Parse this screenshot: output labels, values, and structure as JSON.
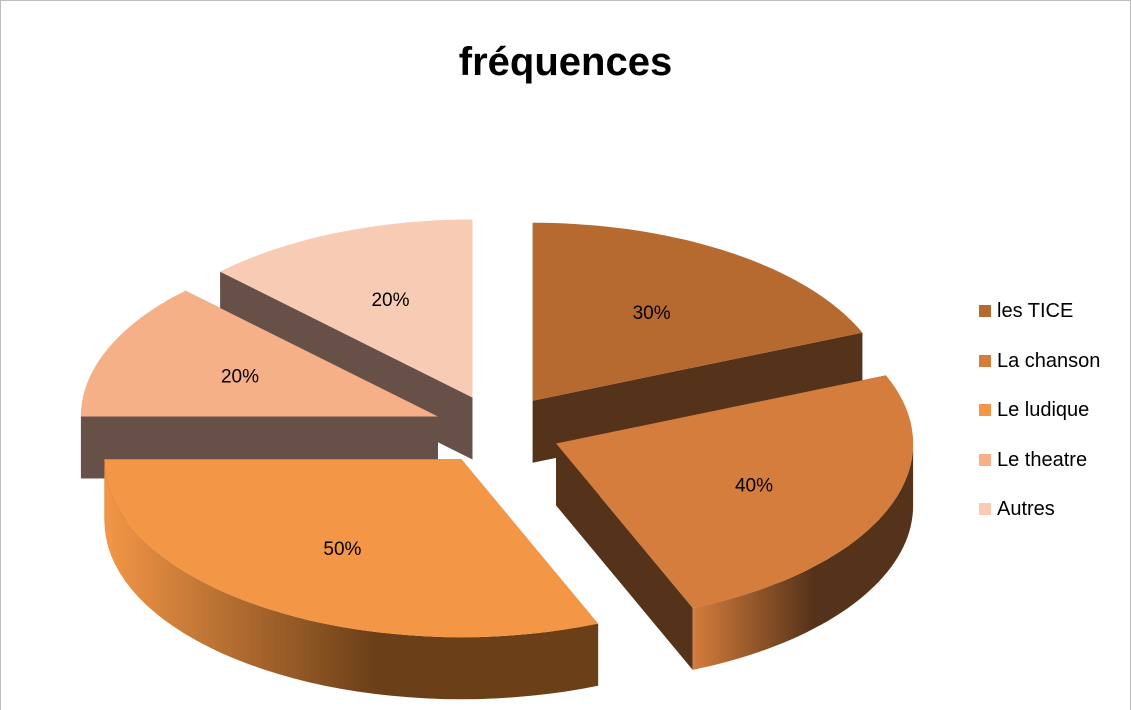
{
  "chart_data": {
    "type": "pie",
    "title": "fréquences",
    "categories": [
      "les TICE",
      "La chanson",
      "Le ludique",
      "Le theatre",
      "Autres"
    ],
    "values": [
      30,
      40,
      50,
      20,
      20
    ],
    "data_labels": [
      "30%",
      "40%",
      "50%",
      "20%",
      "20%"
    ],
    "colors": [
      "#b76a30",
      "#d57d3c",
      "#f39646",
      "#f6b088",
      "#f8cbb4"
    ],
    "side_colors": [
      "#55321a",
      "#55321a",
      "#6b3f18",
      "#665048",
      "#665048"
    ],
    "legend_position": "right",
    "exploded": true,
    "style": "3d"
  }
}
